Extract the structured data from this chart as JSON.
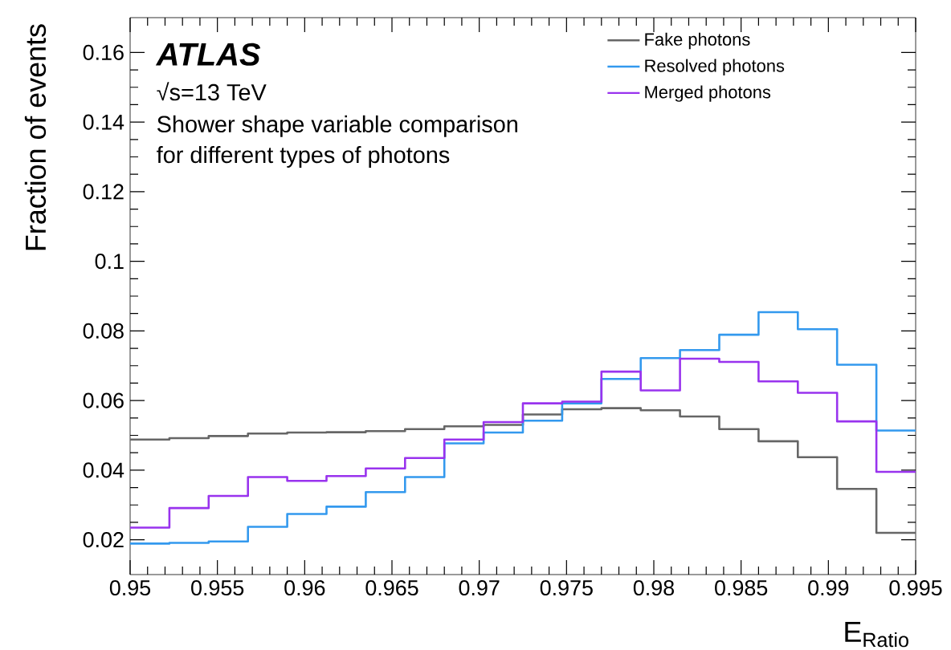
{
  "chart_data": {
    "type": "histogram",
    "xlabel": "E$_{Ratio}$",
    "ylabel": "Fraction of events",
    "annotations": [
      "ATLAS",
      "√s=13 TeV",
      "Shower shape variable comparison",
      "for different types of photons"
    ],
    "bins": [
      0.95,
      0.95225,
      0.9545,
      0.95675,
      0.959,
      0.96125,
      0.9635,
      0.96575,
      0.968,
      0.97025,
      0.9725,
      0.97475,
      0.977,
      0.97925,
      0.9815,
      0.98375,
      0.986,
      0.98825,
      0.9905,
      0.99275,
      0.995
    ],
    "series": [
      {
        "name": "Fake photons",
        "color": "#666666",
        "values": [
          0.0488,
          0.0492,
          0.0498,
          0.0505,
          0.0508,
          0.0509,
          0.0512,
          0.0518,
          0.0526,
          0.053,
          0.056,
          0.0575,
          0.0578,
          0.0572,
          0.0554,
          0.0518,
          0.0483,
          0.0437,
          0.0346,
          0.022
        ]
      },
      {
        "name": "Resolved photons",
        "color": "#3399ee",
        "values": [
          0.0189,
          0.0191,
          0.0195,
          0.0237,
          0.0274,
          0.0295,
          0.0337,
          0.038,
          0.0477,
          0.0508,
          0.0542,
          0.0592,
          0.0662,
          0.0722,
          0.0745,
          0.0789,
          0.0854,
          0.0805,
          0.0703,
          0.0514
        ]
      },
      {
        "name": "Merged photons",
        "color": "#9933ee",
        "values": [
          0.0235,
          0.0291,
          0.0326,
          0.038,
          0.0369,
          0.0383,
          0.0405,
          0.0435,
          0.0488,
          0.0538,
          0.0592,
          0.0597,
          0.0683,
          0.0629,
          0.072,
          0.0711,
          0.0655,
          0.0622,
          0.054,
          0.0395
        ]
      }
    ],
    "xlim": [
      0.95,
      0.995
    ],
    "ylim": [
      0.01,
      0.17
    ],
    "xticks": [
      0.95,
      0.955,
      0.96,
      0.965,
      0.97,
      0.975,
      0.98,
      0.985,
      0.99,
      0.995
    ],
    "yticks": [
      0.02,
      0.04,
      0.06,
      0.08,
      0.1,
      0.12,
      0.14,
      0.16
    ],
    "legend": "top right",
    "grid": false
  }
}
